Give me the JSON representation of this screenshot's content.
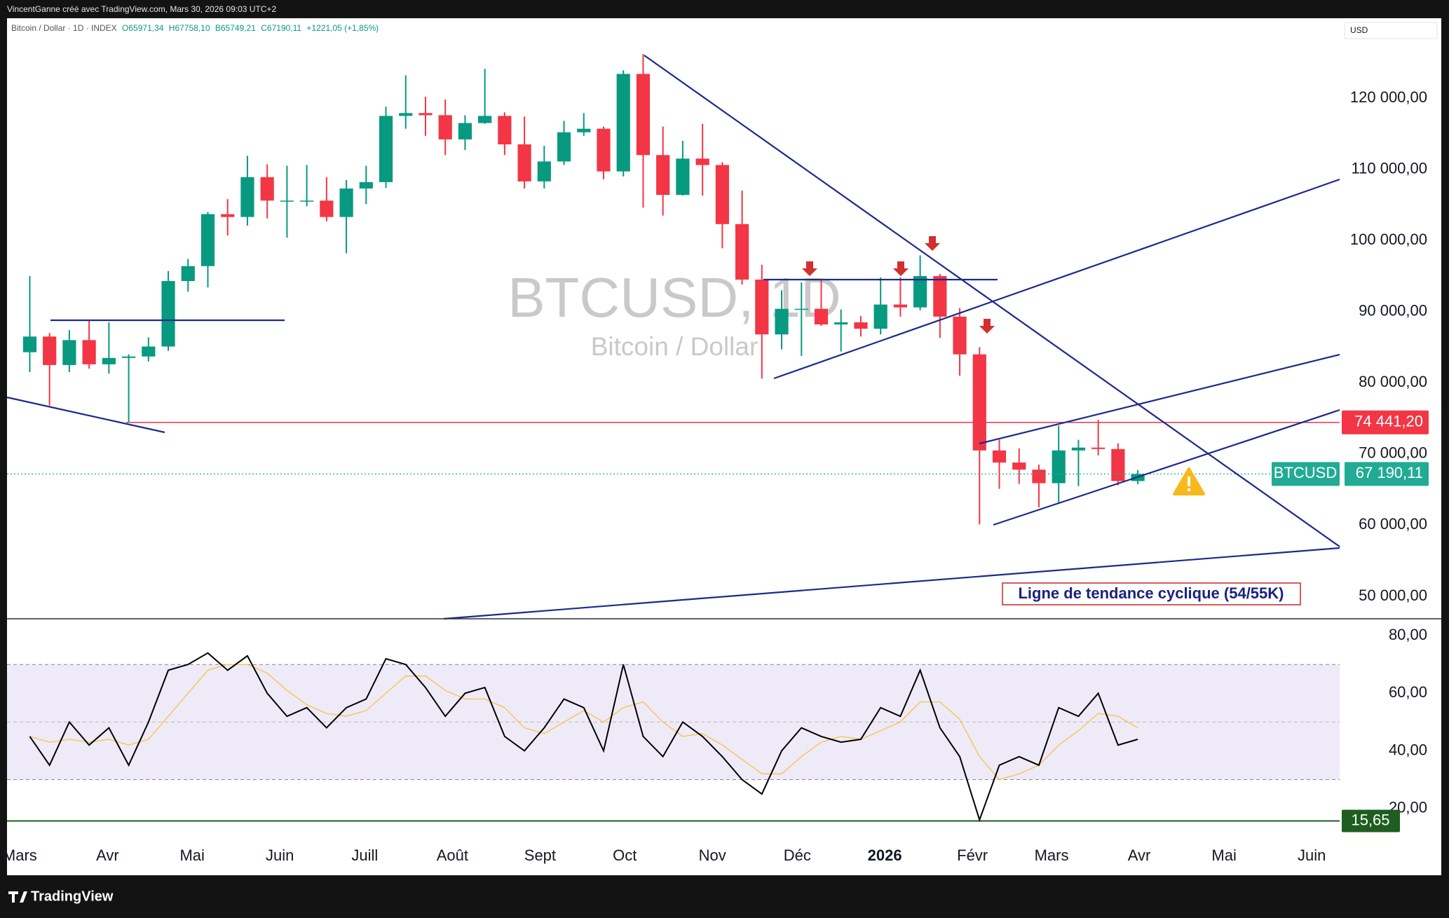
{
  "header": {
    "credit": "VincentGanne créé avec TradingView.com, Mars 30, 2026 09:03 UTC+2",
    "symbol": "Bitcoin / Dollar · 1D · INDEX",
    "ohlc": [
      "O65971,34",
      "H67758,10",
      "B65749,21",
      "C67190,11",
      "+1221,05 (+1,85%)"
    ],
    "currency": "USD",
    "footer": "TradingView"
  },
  "chart_data": [
    {
      "type": "candlestick",
      "watermark": {
        "symbol": "BTCUSD, 1D",
        "description": "Bitcoin / Dollar"
      },
      "annotations": [
        "Ligne de tendance cyclique (54/55K)"
      ],
      "up_color": "#089981",
      "down_color": "#f23645",
      "categories": [
        null,
        null,
        null,
        null,
        null,
        null,
        null,
        null,
        null,
        null,
        null,
        null,
        null,
        null,
        null,
        null,
        null,
        null,
        null,
        null,
        null,
        null,
        null,
        null,
        null,
        null,
        null,
        null,
        null,
        null,
        null,
        null,
        null,
        null,
        null,
        null,
        null,
        null,
        null,
        null,
        null,
        null,
        null,
        null,
        null,
        null,
        null,
        null,
        null,
        null,
        null,
        null,
        null,
        null,
        null,
        null,
        null
      ],
      "open": [
        84300,
        86500,
        82500,
        86000,
        82600,
        83500,
        83700,
        85100,
        94300,
        96400,
        103700,
        103300,
        108900,
        105600,
        105600,
        105600,
        103300,
        107300,
        108200,
        117500,
        117900,
        117600,
        114200,
        116500,
        117500,
        113500,
        108300,
        111100,
        115200,
        115700,
        109700,
        123400,
        112000,
        106400,
        111500,
        110600,
        102300,
        94500,
        86800,
        90400,
        90400,
        88200,
        88500,
        87600,
        91000,
        90600,
        95000,
        89300,
        84000,
        70500,
        68800,
        67800,
        65900,
        70500,
        70900,
        70700,
        66200
      ],
      "high": [
        95000,
        87000,
        87400,
        88800,
        88500,
        84000,
        86400,
        95700,
        97400,
        104000,
        105800,
        111900,
        110700,
        110500,
        110600,
        108900,
        108500,
        110500,
        118800,
        123200,
        120200,
        119800,
        117600,
        124100,
        118000,
        117400,
        113300,
        116800,
        117900,
        116000,
        123900,
        126200,
        116000,
        114000,
        116400,
        111000,
        107000,
        96600,
        93000,
        94100,
        94600,
        90300,
        89400,
        94800,
        94800,
        97900,
        95300,
        90500,
        85000,
        72000,
        70800,
        68500,
        74000,
        72000,
        74800,
        71500,
        67758.1
      ],
      "low": [
        81500,
        76800,
        81500,
        82000,
        81300,
        74400,
        83000,
        84500,
        92800,
        93400,
        100700,
        102100,
        103100,
        100400,
        104800,
        102700,
        98200,
        105100,
        107400,
        115700,
        114700,
        112000,
        112700,
        116400,
        112000,
        107300,
        107300,
        110600,
        114700,
        108600,
        109000,
        104600,
        103500,
        106300,
        106300,
        98900,
        93800,
        80600,
        84700,
        83800,
        88000,
        84400,
        86500,
        86800,
        89300,
        90200,
        86300,
        81000,
        60100,
        65100,
        65800,
        62500,
        63000,
        65500,
        69800,
        65600,
        65749.21
      ],
      "close": [
        86500,
        82500,
        86000,
        82600,
        83500,
        83700,
        85100,
        94300,
        96400,
        103700,
        103300,
        108900,
        105600,
        105600,
        105600,
        103300,
        107300,
        108200,
        117500,
        117900,
        117600,
        114200,
        116500,
        117500,
        113500,
        108300,
        111100,
        115200,
        115700,
        109700,
        123400,
        112000,
        106400,
        111500,
        110600,
        102300,
        94500,
        86800,
        90400,
        90400,
        88200,
        88500,
        87600,
        91000,
        90600,
        95000,
        89300,
        84000,
        70500,
        68800,
        67800,
        65900,
        70500,
        70900,
        70700,
        66200,
        67190.11
      ],
      "xlim": [
        -0.65,
        66.7
      ],
      "xticks": [
        {
          "value": 0,
          "label": "Mars"
        },
        {
          "value": 4.43,
          "label": "Avr"
        },
        {
          "value": 8.71,
          "label": "Mai"
        },
        {
          "value": 13.14,
          "label": "Juin"
        },
        {
          "value": 17.43,
          "label": "Juill"
        },
        {
          "value": 21.86,
          "label": "Août"
        },
        {
          "value": 26.29,
          "label": "Sept"
        },
        {
          "value": 30.57,
          "label": "Oct"
        },
        {
          "value": 35,
          "label": "Nov"
        },
        {
          "value": 39.29,
          "label": "Déc"
        },
        {
          "value": 43.71,
          "label": "2026",
          "bold": true
        },
        {
          "value": 48.14,
          "label": "Févr"
        },
        {
          "value": 52.14,
          "label": "Mars"
        },
        {
          "value": 56.57,
          "label": "Avr"
        },
        {
          "value": 60.86,
          "label": "Mai"
        },
        {
          "value": 65.29,
          "label": "Juin"
        }
      ],
      "ylim": [
        46850,
        128370
      ],
      "yticks": [
        {
          "value": 50000,
          "label": "50 000,00"
        },
        {
          "value": 60000,
          "label": "60 000,00"
        },
        {
          "value": 70000,
          "label": "70 000,00"
        },
        {
          "value": 80000,
          "label": "80 000,00"
        },
        {
          "value": 90000,
          "label": "90 000,00"
        },
        {
          "value": 100000,
          "label": "100 000,00"
        },
        {
          "value": 110000,
          "label": "110 000,00"
        },
        {
          "value": 120000,
          "label": "120 000,00"
        }
      ],
      "hlines": [
        {
          "value": 74441.2,
          "label": "74 441,20",
          "color": "#f23645"
        }
      ],
      "last_price": {
        "name": "BTCUSD",
        "value": 67190.11,
        "label": "67 190,11",
        "color": "#22ab94"
      }
    },
    {
      "type": "line",
      "series": [
        {
          "color": "#000000",
          "values": [
            45,
            35,
            50,
            42,
            48,
            35,
            50,
            68,
            70,
            74,
            68,
            73,
            60,
            52,
            55,
            48,
            55,
            58,
            72,
            70,
            62,
            52,
            60,
            62,
            45,
            40,
            48,
            58,
            55,
            40,
            70,
            45,
            38,
            50,
            45,
            38,
            30,
            25,
            40,
            48,
            45,
            43,
            44,
            55,
            52,
            68,
            48,
            38,
            16,
            35,
            38,
            35,
            55,
            52,
            60,
            42,
            44
          ]
        },
        {
          "color": "#f5c542",
          "values": [
            45,
            43,
            44,
            43,
            44,
            42,
            44,
            52,
            60,
            68,
            70,
            70,
            67,
            61,
            56,
            53,
            52,
            54,
            60,
            66,
            66,
            61,
            58,
            58,
            55,
            48,
            46,
            50,
            54,
            50,
            55,
            57,
            50,
            45,
            46,
            42,
            37,
            32,
            32,
            38,
            43,
            45,
            44,
            47,
            50,
            57,
            57,
            51,
            38,
            30,
            32,
            35,
            42,
            47,
            53,
            52,
            48
          ]
        }
      ],
      "ylim": [
        10.4,
        85.4
      ],
      "yticks": [
        {
          "value": 20,
          "label": "20,00"
        },
        {
          "value": 40,
          "label": "40,00"
        },
        {
          "value": 60,
          "label": "60,00"
        },
        {
          "value": 80,
          "label": "80,00"
        }
      ],
      "band": [
        30,
        70
      ],
      "midline": 50,
      "band_color": "#eeeaf8",
      "level": {
        "value": 15.65,
        "label": "15,65",
        "color": "#1e5e20"
      }
    }
  ]
}
